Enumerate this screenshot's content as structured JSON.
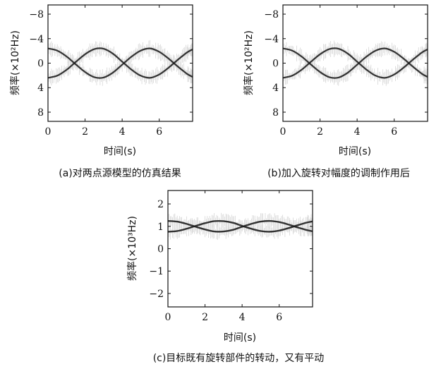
{
  "figure": {
    "panels": [
      {
        "id": "a",
        "caption": "(a)对两点源模型的仿真结果",
        "xlabel": "时间(s)",
        "ylabel": "频率(×10²Hz)",
        "xlim": [
          0,
          7.8
        ],
        "ylim": [
          -9.5,
          9.5
        ],
        "y_inverted": true,
        "xticks": [
          "0",
          "2",
          "4",
          "6"
        ],
        "yticks": [
          "−8",
          "−4",
          "0",
          "4",
          "8"
        ]
      },
      {
        "id": "b",
        "caption": "(b)加入旋转对幅度的调制作用后",
        "xlabel": "时间(s)",
        "ylabel": "频率(×10²Hz)",
        "xlim": [
          0,
          7.8
        ],
        "ylim": [
          -9.5,
          9.5
        ],
        "y_inverted": true,
        "xticks": [
          "0",
          "2",
          "4",
          "6"
        ],
        "yticks": [
          "−8",
          "−4",
          "0",
          "4",
          "8"
        ]
      },
      {
        "id": "c",
        "caption": "(c)目标既有旋转部件的转动，又有平动",
        "xlabel": "时间(s)",
        "ylabel": "频率(×10³Hz)",
        "xlim": [
          0,
          7.8
        ],
        "ylim": [
          -2.6,
          2.6
        ],
        "y_inverted": false,
        "xticks": [
          "0",
          "2",
          "4",
          "6"
        ],
        "yticks": [
          "2",
          "1",
          "0",
          "−1",
          "−2"
        ]
      }
    ]
  },
  "chart_data": [
    {
      "type": "line",
      "title": "",
      "xlabel": "时间(s)",
      "ylabel": "频率(×10²Hz)",
      "xlim": [
        0,
        7.8
      ],
      "ylim": [
        -9.5,
        9.5
      ],
      "grid": false,
      "series": [
        {
          "x": [
            0,
            0.5,
            1,
            1.5,
            2,
            2.5,
            3,
            3.5,
            4,
            4.5,
            5,
            5.5,
            6,
            6.5,
            7,
            7.5,
            7.8
          ],
          "y": [
            2.4,
            2.05,
            1.1,
            -0.2,
            -1.45,
            -2.3,
            -2.35,
            -1.55,
            -0.25,
            1.05,
            2.05,
            2.4,
            1.85,
            0.75,
            -0.55,
            -1.75,
            -2.25
          ]
        },
        {
          "x": [
            0,
            0.5,
            1,
            1.5,
            2,
            2.5,
            3,
            3.5,
            4,
            4.5,
            5,
            5.5,
            6,
            6.5,
            7,
            7.5,
            7.8
          ],
          "y": [
            -2.4,
            -2.05,
            -1.1,
            0.2,
            1.45,
            2.3,
            2.35,
            1.55,
            0.25,
            -1.05,
            -2.05,
            -2.4,
            -1.85,
            -0.75,
            0.55,
            1.75,
            2.25
          ]
        }
      ]
    },
    {
      "type": "line",
      "title": "",
      "xlabel": "时间(s)",
      "ylabel": "频率(×10²Hz)",
      "xlim": [
        0,
        7.8
      ],
      "ylim": [
        -9.5,
        9.5
      ],
      "grid": false,
      "series": [
        {
          "x": [
            0,
            0.5,
            1,
            1.5,
            2,
            2.5,
            3,
            3.5,
            4,
            4.5,
            5,
            5.5,
            6,
            6.5,
            7,
            7.5,
            7.8
          ],
          "y": [
            2.4,
            2.05,
            1.1,
            -0.2,
            -1.45,
            -2.3,
            -2.35,
            -1.55,
            -0.25,
            1.05,
            2.05,
            2.4,
            1.85,
            0.75,
            -0.55,
            -1.75,
            -2.25
          ]
        },
        {
          "x": [
            0,
            0.5,
            1,
            1.5,
            2,
            2.5,
            3,
            3.5,
            4,
            4.5,
            5,
            5.5,
            6,
            6.5,
            7,
            7.5,
            7.8
          ],
          "y": [
            -2.4,
            -2.05,
            -1.1,
            0.2,
            1.45,
            2.3,
            2.35,
            1.55,
            0.25,
            -1.05,
            -2.05,
            -2.4,
            -1.85,
            -0.75,
            0.55,
            1.75,
            2.25
          ]
        }
      ]
    },
    {
      "type": "line",
      "title": "",
      "xlabel": "时间(s)",
      "ylabel": "频率(×10³Hz)",
      "xlim": [
        0,
        7.8
      ],
      "ylim": [
        -2.6,
        2.6
      ],
      "grid": false,
      "series": [
        {
          "x": [
            0,
            0.5,
            1,
            1.5,
            2,
            2.5,
            3,
            3.5,
            4,
            4.5,
            5,
            5.5,
            6,
            6.5,
            7,
            7.5,
            7.8
          ],
          "y": [
            1.24,
            1.21,
            1.11,
            0.98,
            0.86,
            0.77,
            0.77,
            0.84,
            0.98,
            1.11,
            1.21,
            1.24,
            1.19,
            1.08,
            0.95,
            0.83,
            0.78
          ]
        },
        {
          "x": [
            0,
            0.5,
            1,
            1.5,
            2,
            2.5,
            3,
            3.5,
            4,
            4.5,
            5,
            5.5,
            6,
            6.5,
            7,
            7.5,
            7.8
          ],
          "y": [
            0.76,
            0.79,
            0.89,
            1.02,
            1.14,
            1.23,
            1.23,
            1.16,
            1.02,
            0.89,
            0.79,
            0.76,
            0.81,
            0.92,
            1.05,
            1.17,
            1.22
          ]
        }
      ]
    }
  ]
}
